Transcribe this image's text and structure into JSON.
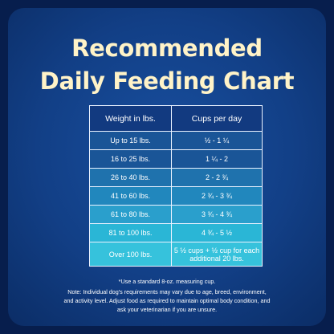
{
  "title_line1": "Recommended",
  "title_line2": "Daily Feeding Chart",
  "table": {
    "headers": [
      "Weight in lbs.",
      "Cups per day"
    ],
    "rows": [
      [
        "Up to 15 lbs.",
        "½ - 1 ¼"
      ],
      [
        "16 to 25 lbs.",
        "1 ¼ - 2"
      ],
      [
        "26 to 40 lbs.",
        "2 - 2 ¾"
      ],
      [
        "41 to 60 lbs.",
        "2 ¾ - 3 ¾"
      ],
      [
        "61 to 80 lbs.",
        "3 ¾ - 4 ¾"
      ],
      [
        "81 to 100 lbs.",
        "4 ¾ - 5 ½"
      ],
      [
        "Over 100 lbs.",
        "5 ½ cups + ½ cup for each additional 20 lbs."
      ]
    ],
    "row_colors": [
      "#123a80",
      "#1a5597",
      "#1a5597",
      "#1f72ad",
      "#2187bd",
      "#2a9fcc",
      "#2ab6d6",
      "#36c2dc"
    ]
  },
  "footnote": "*Use a standard 8-oz. measuring cup.",
  "note": [
    "Note: Individual dog's requirements may vary due to age, breed, environment,",
    "and activity level. Adjust food as required to maintain optimal body condition, and",
    "ask your veterinarian if you are unsure."
  ]
}
